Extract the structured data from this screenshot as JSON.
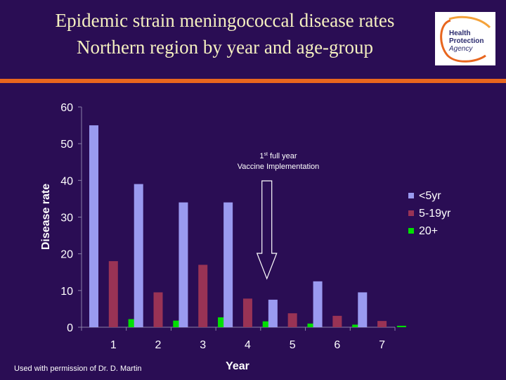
{
  "slide": {
    "title_line1": "Epidemic strain meningococcal disease rates",
    "title_line2": "Northern region by year and age-group",
    "footer": "Used with permission of Dr. D. Martin",
    "logo_text": [
      "Health",
      "Protection",
      "Agency"
    ]
  },
  "colors": {
    "background": "#2a0d54",
    "title": "#f5f0c0",
    "rule": "#e8661e",
    "series": [
      "#9a9af0",
      "#993355",
      "#00e000"
    ]
  },
  "chart_data": {
    "type": "bar",
    "categories": [
      "1",
      "2",
      "3",
      "4",
      "5",
      "6",
      "7"
    ],
    "series": [
      {
        "name": "<5yr",
        "values": [
          55,
          39,
          34,
          34,
          7.5,
          12.5,
          9.5
        ]
      },
      {
        "name": "5-19yr",
        "values": [
          18,
          9.5,
          17,
          7.8,
          3.8,
          3.1,
          1.7
        ]
      },
      {
        "name": "20+",
        "values": [
          2.2,
          1.8,
          2.7,
          1.6,
          1.0,
          0.7,
          0.4
        ]
      }
    ],
    "xlabel": "Year",
    "ylabel": "Disease rate",
    "ylim": [
      0,
      60
    ],
    "yticks": [
      0,
      10,
      20,
      30,
      40,
      50,
      60
    ],
    "legend": "right",
    "annotation": {
      "sup_number": "1",
      "sup": "st",
      "line1_rest": " full year",
      "line2": "Vaccine Implementation",
      "category": "5"
    }
  }
}
